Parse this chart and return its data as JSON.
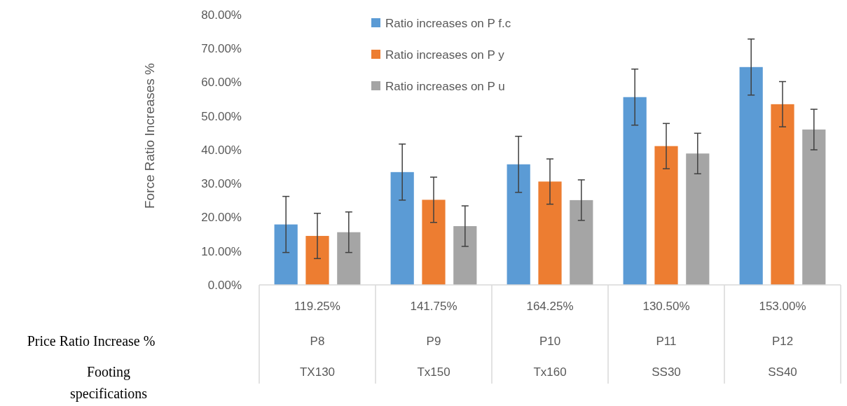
{
  "chart_data": {
    "type": "bar",
    "ylabel": "Force Ratio Increases %",
    "categories": [
      "P8",
      "P9",
      "P10",
      "P11",
      "P12"
    ],
    "series": [
      {
        "name": "Ratio increases on P f.c",
        "color": "#5b9bd5",
        "values": [
          17.9,
          33.4,
          35.7,
          55.6,
          64.5
        ],
        "errors": [
          8.3,
          8.3,
          8.3,
          8.3,
          8.3
        ]
      },
      {
        "name": "Ratio increases on P y",
        "color": "#ed7d31",
        "values": [
          14.5,
          25.2,
          30.6,
          41.1,
          53.5
        ],
        "errors": [
          6.7,
          6.7,
          6.7,
          6.7,
          6.7
        ]
      },
      {
        "name": "Ratio increases on P u",
        "color": "#a5a5a5",
        "values": [
          15.6,
          17.4,
          25.1,
          38.9,
          46.0
        ],
        "errors": [
          6.0,
          6.0,
          6.0,
          6.0,
          6.0
        ]
      }
    ],
    "ylim": [
      0,
      80
    ],
    "yticks": [
      {
        "value": 0,
        "label": "0.00%"
      },
      {
        "value": 10,
        "label": "10.00%"
      },
      {
        "value": 20,
        "label": "20.00%"
      },
      {
        "value": 30,
        "label": "30.00%"
      },
      {
        "value": 40,
        "label": "40.00%"
      },
      {
        "value": 50,
        "label": "50.00%"
      },
      {
        "value": 60,
        "label": "60.00%"
      },
      {
        "value": 70,
        "label": "70.00%"
      },
      {
        "value": 80,
        "label": "80.00%"
      }
    ],
    "legend": "top",
    "annotations": [
      "119.25%",
      "141.75%",
      "164.25%",
      "130.50%",
      "153.00%",
      "TX130",
      "Tx150",
      "Tx160",
      "SS30",
      "SS40",
      "Price Ratio Increase %",
      "Footing specifications"
    ]
  }
}
